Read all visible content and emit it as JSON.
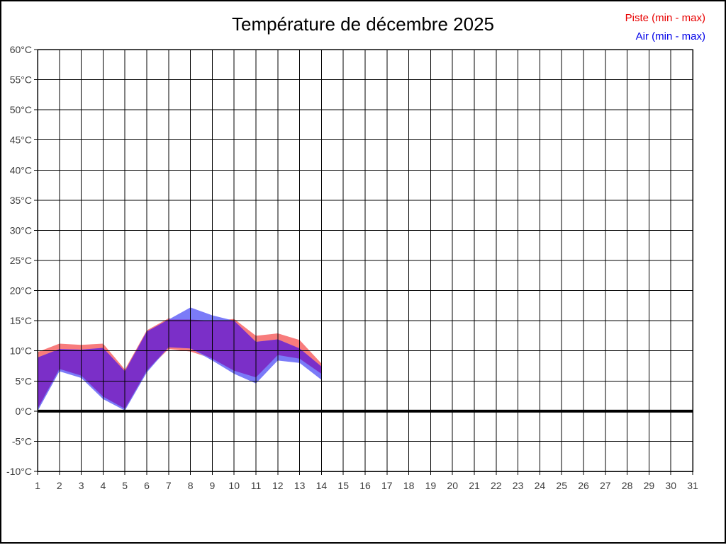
{
  "page": {
    "background": "#ffffff",
    "border_color": "#000000"
  },
  "header": {
    "title": "Température de décembre 2025"
  },
  "legend": {
    "position": "top-right",
    "items": [
      {
        "id": "piste",
        "label": "Piste (min - max)",
        "color": "#e80000"
      },
      {
        "id": "air",
        "label": "Air (min - max)",
        "color": "#0000e8"
      }
    ]
  },
  "chart_data": {
    "type": "area",
    "subtype": "min-max-band",
    "title": "Température de décembre 2025",
    "xlabel": "",
    "ylabel": "",
    "x_unit": "day of month",
    "y_unit": "°C",
    "xlim": [
      1,
      31
    ],
    "ylim": [
      -10,
      60
    ],
    "grid": true,
    "zero_line_value": 0,
    "legend_position": "top-right",
    "x": [
      1,
      2,
      3,
      4,
      5,
      6,
      7,
      8,
      9,
      10,
      11,
      12,
      13,
      14
    ],
    "series": [
      {
        "name": "Piste (min - max)",
        "fill": "#f87c7c",
        "min": [
          0.4,
          7.0,
          5.9,
          2.4,
          0.4,
          6.7,
          10.3,
          9.9,
          8.7,
          6.7,
          5.6,
          9.3,
          8.7,
          6.2
        ],
        "max": [
          9.8,
          11.2,
          11.0,
          11.2,
          6.9,
          13.4,
          15.4,
          15.2,
          15.0,
          15.3,
          12.5,
          12.9,
          11.8,
          7.9
        ]
      },
      {
        "name": "Air (min - max)",
        "fill": "#7b7bf8",
        "min": [
          0.0,
          6.6,
          5.5,
          2.0,
          0.1,
          6.4,
          10.6,
          10.4,
          8.4,
          6.2,
          4.6,
          8.4,
          8.0,
          5.2
        ],
        "max": [
          8.9,
          10.3,
          10.2,
          10.5,
          6.6,
          13.2,
          15.2,
          17.2,
          15.9,
          15.0,
          11.5,
          11.9,
          10.4,
          7.4
        ]
      }
    ],
    "overlap_color": "#7b2fc8",
    "x_ticks": [
      1,
      2,
      3,
      4,
      5,
      6,
      7,
      8,
      9,
      10,
      11,
      12,
      13,
      14,
      15,
      16,
      17,
      18,
      19,
      20,
      21,
      22,
      23,
      24,
      25,
      26,
      27,
      28,
      29,
      30,
      31
    ],
    "y_ticks": [
      {
        "value": 60,
        "label": "60°C"
      },
      {
        "value": 55,
        "label": "55°C"
      },
      {
        "value": 50,
        "label": "50°C"
      },
      {
        "value": 45,
        "label": "45°C"
      },
      {
        "value": 40,
        "label": "40°C"
      },
      {
        "value": 35,
        "label": "35°C"
      },
      {
        "value": 30,
        "label": "30°C"
      },
      {
        "value": 25,
        "label": "25°C"
      },
      {
        "value": 20,
        "label": "20°C"
      },
      {
        "value": 15,
        "label": "15°C"
      },
      {
        "value": 10,
        "label": "10°C"
      },
      {
        "value": 5,
        "label": "5°C"
      },
      {
        "value": 0,
        "label": "0°C"
      },
      {
        "value": -5,
        "label": "-5°C"
      },
      {
        "value": -10,
        "label": "-10°C"
      }
    ]
  }
}
